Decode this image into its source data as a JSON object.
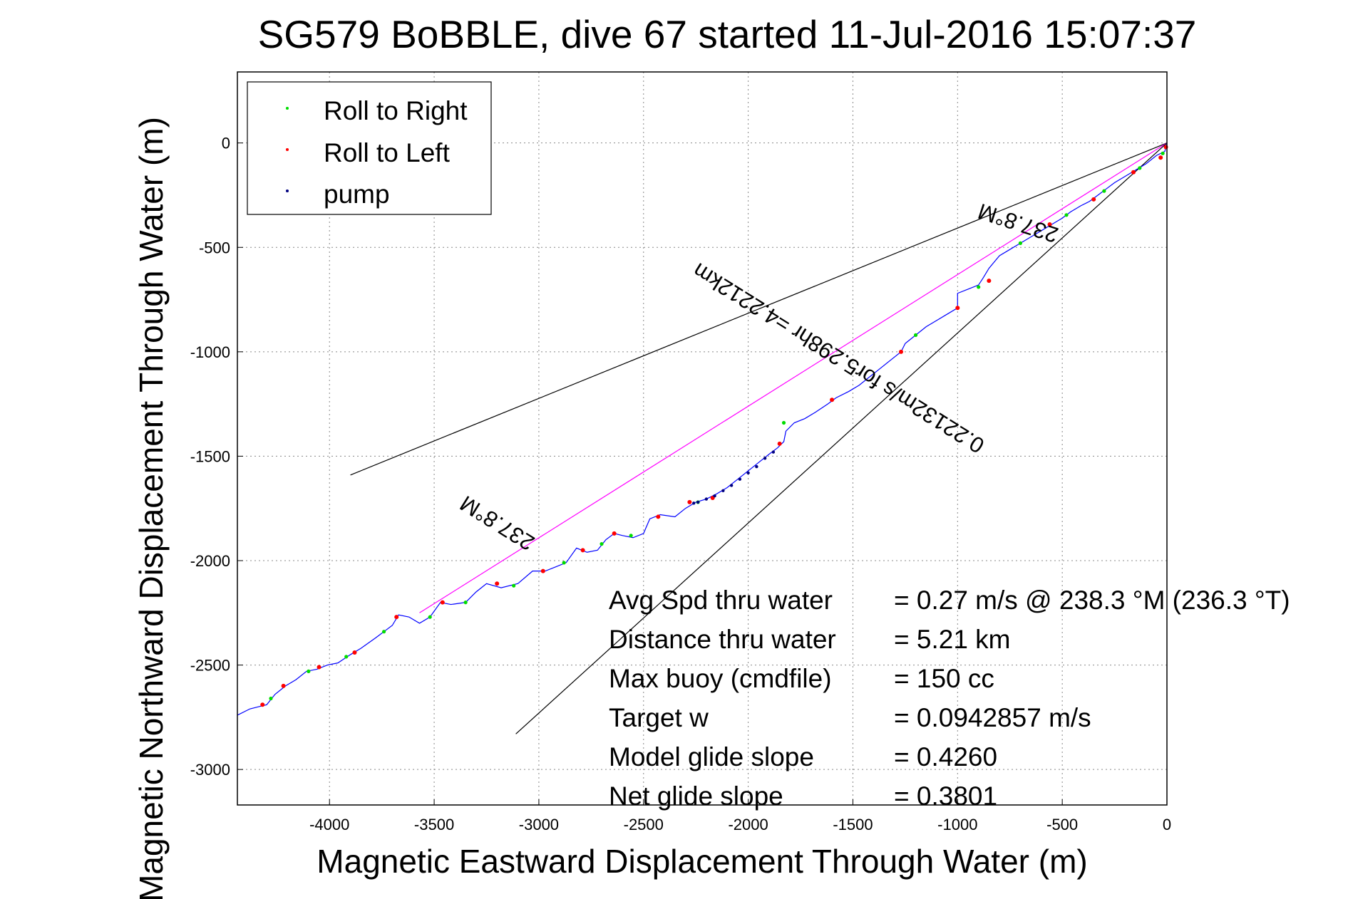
{
  "chart_data": {
    "type": "line",
    "title": "SG579 BoBBLE, dive 67 started 11-Jul-2016 15:07:37",
    "xlabel": "Magnetic Eastward Displacement Through Water (m)",
    "ylabel": "Magnetic Northward Displacement Through Water (m)",
    "xlim": [
      -4440,
      0
    ],
    "ylim": [
      -3170,
      340
    ],
    "x_ticks": [
      "-4000",
      "-3500",
      "-3000",
      "-2500",
      "-2000",
      "-1500",
      "-1000",
      "-500",
      "0"
    ],
    "y_ticks": [
      "0",
      "-500",
      "-1000",
      "-1500",
      "-2000",
      "-2500",
      "-3000"
    ],
    "grid": true,
    "legend": {
      "placement": "top-left",
      "entries": [
        {
          "label": "Roll to Right",
          "color": "#00dd00"
        },
        {
          "label": "Roll to Left",
          "color": "#ff0000"
        },
        {
          "label": "pump",
          "color": "#000080"
        }
      ]
    },
    "track_color": "#0000ff",
    "track": [
      [
        0,
        0
      ],
      [
        -10,
        -40
      ],
      [
        -50,
        -60
      ],
      [
        -100,
        -100
      ],
      [
        -150,
        -130
      ],
      [
        -200,
        -160
      ],
      [
        -250,
        -190
      ],
      [
        -290,
        -220
      ],
      [
        -330,
        -250
      ],
      [
        -370,
        -280
      ],
      [
        -410,
        -300
      ],
      [
        -460,
        -330
      ],
      [
        -500,
        -360
      ],
      [
        -550,
        -390
      ],
      [
        -600,
        -420
      ],
      [
        -650,
        -450
      ],
      [
        -700,
        -480
      ],
      [
        -750,
        -510
      ],
      [
        -800,
        -540
      ],
      [
        -850,
        -600
      ],
      [
        -880,
        -650
      ],
      [
        -900,
        -680
      ],
      [
        -950,
        -700
      ],
      [
        -1000,
        -720
      ],
      [
        -1000,
        -790
      ],
      [
        -1050,
        -820
      ],
      [
        -1100,
        -850
      ],
      [
        -1150,
        -880
      ],
      [
        -1200,
        -920
      ],
      [
        -1250,
        -960
      ],
      [
        -1270,
        -1000
      ],
      [
        -1320,
        -1040
      ],
      [
        -1370,
        -1080
      ],
      [
        -1420,
        -1120
      ],
      [
        -1470,
        -1160
      ],
      [
        -1520,
        -1190
      ],
      [
        -1580,
        -1220
      ],
      [
        -1620,
        -1250
      ],
      [
        -1680,
        -1290
      ],
      [
        -1730,
        -1320
      ],
      [
        -1780,
        -1340
      ],
      [
        -1820,
        -1380
      ],
      [
        -1830,
        -1430
      ],
      [
        -1860,
        -1460
      ],
      [
        -1900,
        -1490
      ],
      [
        -1950,
        -1530
      ],
      [
        -2000,
        -1570
      ],
      [
        -2050,
        -1610
      ],
      [
        -2100,
        -1650
      ],
      [
        -2150,
        -1680
      ],
      [
        -2200,
        -1705
      ],
      [
        -2250,
        -1720
      ],
      [
        -2300,
        -1750
      ],
      [
        -2350,
        -1790
      ],
      [
        -2420,
        -1780
      ],
      [
        -2470,
        -1800
      ],
      [
        -2500,
        -1870
      ],
      [
        -2550,
        -1890
      ],
      [
        -2600,
        -1880
      ],
      [
        -2640,
        -1870
      ],
      [
        -2680,
        -1900
      ],
      [
        -2720,
        -1950
      ],
      [
        -2770,
        -1960
      ],
      [
        -2820,
        -1940
      ],
      [
        -2870,
        -2010
      ],
      [
        -2920,
        -2030
      ],
      [
        -2970,
        -2050
      ],
      [
        -3030,
        -2050
      ],
      [
        -3100,
        -2110
      ],
      [
        -3180,
        -2130
      ],
      [
        -3250,
        -2110
      ],
      [
        -3300,
        -2150
      ],
      [
        -3350,
        -2200
      ],
      [
        -3420,
        -2210
      ],
      [
        -3470,
        -2200
      ],
      [
        -3520,
        -2270
      ],
      [
        -3570,
        -2300
      ],
      [
        -3620,
        -2270
      ],
      [
        -3670,
        -2260
      ],
      [
        -3700,
        -2310
      ],
      [
        -3740,
        -2340
      ],
      [
        -3780,
        -2370
      ],
      [
        -3850,
        -2420
      ],
      [
        -3900,
        -2450
      ],
      [
        -3960,
        -2490
      ],
      [
        -4010,
        -2500
      ],
      [
        -4060,
        -2520
      ],
      [
        -4110,
        -2530
      ],
      [
        -4160,
        -2570
      ],
      [
        -4210,
        -2600
      ],
      [
        -4260,
        -2640
      ],
      [
        -4300,
        -2690
      ],
      [
        -4340,
        -2700
      ],
      [
        -4380,
        -2710
      ],
      [
        -4440,
        -2740
      ]
    ],
    "roll_to_right": [
      [
        -20,
        -50
      ],
      [
        -130,
        -120
      ],
      [
        -300,
        -230
      ],
      [
        -480,
        -345
      ],
      [
        -700,
        -480
      ],
      [
        -900,
        -690
      ],
      [
        -1200,
        -920
      ],
      [
        -1830,
        -1340
      ],
      [
        -2240,
        -1720
      ],
      [
        -2560,
        -1880
      ],
      [
        -2700,
        -1920
      ],
      [
        -2880,
        -2010
      ],
      [
        -3120,
        -2120
      ],
      [
        -3350,
        -2200
      ],
      [
        -3520,
        -2270
      ],
      [
        -3740,
        -2340
      ],
      [
        -3920,
        -2460
      ],
      [
        -4100,
        -2530
      ],
      [
        -4280,
        -2660
      ]
    ],
    "roll_to_left": [
      [
        -5,
        -20
      ],
      [
        -30,
        -70
      ],
      [
        -160,
        -140
      ],
      [
        -350,
        -270
      ],
      [
        -560,
        -390
      ],
      [
        -850,
        -660
      ],
      [
        -1000,
        -790
      ],
      [
        -1270,
        -1000
      ],
      [
        -1600,
        -1230
      ],
      [
        -1850,
        -1440
      ],
      [
        -2170,
        -1700
      ],
      [
        -2280,
        -1720
      ],
      [
        -2430,
        -1790
      ],
      [
        -2640,
        -1870
      ],
      [
        -2790,
        -1950
      ],
      [
        -2980,
        -2050
      ],
      [
        -3200,
        -2110
      ],
      [
        -3460,
        -2200
      ],
      [
        -3680,
        -2270
      ],
      [
        -3880,
        -2440
      ],
      [
        -4050,
        -2510
      ],
      [
        -4220,
        -2600
      ],
      [
        -4320,
        -2690
      ]
    ],
    "pump": [
      [
        -1880,
        -1480
      ],
      [
        -1920,
        -1510
      ],
      [
        -1960,
        -1550
      ],
      [
        -2000,
        -1580
      ],
      [
        -2040,
        -1610
      ],
      [
        -2080,
        -1640
      ],
      [
        -2120,
        -1665
      ],
      [
        -2160,
        -1690
      ],
      [
        -2200,
        -1705
      ],
      [
        -2240,
        -1720
      ],
      [
        -2260,
        -1725
      ]
    ],
    "reference_lines": [
      {
        "label": "237.8°M",
        "color": "#000000",
        "from": [
          0,
          0
        ],
        "to": [
          -3900,
          -1590
        ]
      },
      {
        "label": "237.8°M",
        "color": "#ff00ff",
        "from": [
          0,
          0
        ],
        "to": [
          -3570,
          -2250
        ]
      },
      {
        "label": "",
        "color": "#000000",
        "from": [
          0,
          0
        ],
        "to": [
          -3110,
          -2830
        ]
      }
    ],
    "annotations": [
      {
        "text": "237.8°M",
        "x": -700,
        "y": -350,
        "rotation_deg": 198
      },
      {
        "text": "0.22132m/s for5.298hr =4.2212km",
        "x": -1550,
        "y": -1000,
        "rotation_deg": 212
      },
      {
        "text": "237.8°M",
        "x": -3180,
        "y": -1790,
        "rotation_deg": 212
      }
    ],
    "stats": [
      {
        "label": "Avg Spd thru water",
        "value": "=  0.27 m/s @ 238.3 °M (236.3 °T)"
      },
      {
        "label": "Distance thru water",
        "value": "=  5.21 km"
      },
      {
        "label": "Max buoy (cmdfile)",
        "value": "= 150 cc"
      },
      {
        "label": "Target w",
        "value": "= 0.0942857 m/s"
      },
      {
        "label": "Model glide slope",
        "value": "= 0.4260"
      },
      {
        "label": "Net glide slope",
        "value": "= 0.3801"
      }
    ]
  }
}
